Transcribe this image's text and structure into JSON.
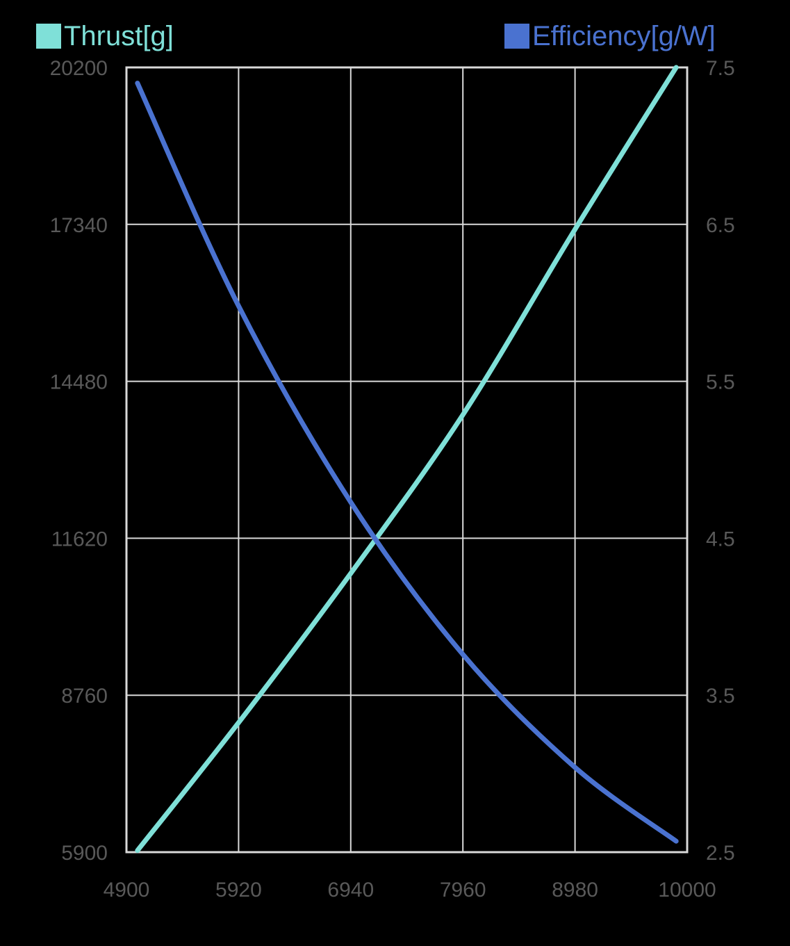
{
  "chart_data": {
    "type": "line",
    "title": "",
    "xlabel": "",
    "ylabel": "Thrust[g]",
    "y2label": "Efficiency[g/W]",
    "x_ticks": [
      4900,
      5920,
      6940,
      7960,
      8980,
      10000
    ],
    "x_tick_labels": [
      "4900",
      "5920",
      "6940",
      "7960",
      "8980",
      "10000"
    ],
    "xlim": [
      4900,
      10000
    ],
    "y_ticks": [
      5900,
      8760,
      11620,
      14480,
      17340,
      20200
    ],
    "y_tick_labels": [
      "5900",
      "8760",
      "11620",
      "14480",
      "17340",
      "20200"
    ],
    "ylim": [
      5900,
      20200
    ],
    "y2_ticks": [
      2.5,
      3.5,
      4.5,
      5.5,
      6.5,
      7.5
    ],
    "y2_tick_labels": [
      "2.5",
      "3.5",
      "4.5",
      "5.5",
      "6.5",
      "7.5"
    ],
    "y2lim": [
      2.5,
      7.5
    ],
    "grid": true,
    "legend_position": "top",
    "x": [
      5000,
      5920,
      6940,
      7960,
      8980,
      9900
    ],
    "series": [
      {
        "name": "Thrust[g]",
        "axis": "left",
        "color": "#7FE0D8",
        "values": [
          5930,
          8260,
          10980,
          13870,
          17250,
          20200
        ]
      },
      {
        "name": "Efficiency[g/W]",
        "axis": "right",
        "color": "#4A72D0",
        "values": [
          7.4,
          5.98,
          4.73,
          3.76,
          3.04,
          2.57
        ]
      }
    ]
  },
  "legend": {
    "left": {
      "label": "Thrust[g]",
      "color": "#7FE0D8"
    },
    "right": {
      "label": "Efficiency[g/W]",
      "color": "#4A72D0"
    }
  },
  "colors": {
    "background": "#000000",
    "grid": "#D9D9D9",
    "tick_text": "#595959"
  }
}
